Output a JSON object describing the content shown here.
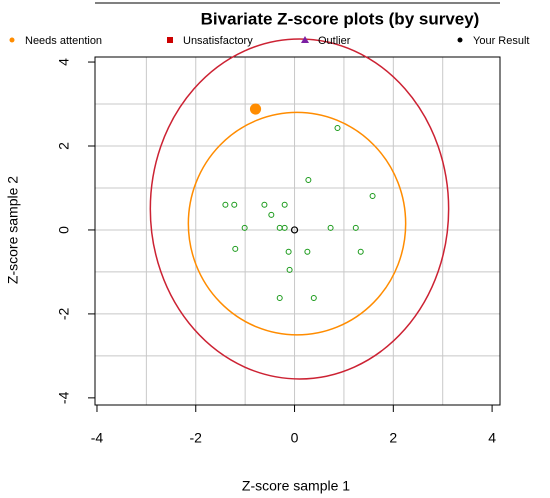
{
  "chart_data": {
    "type": "scatter",
    "title": "Bivariate Z-score plots (by survey)",
    "x_label": "Z-score sample 1",
    "y_label": "Z-score sample 2",
    "xlim": [
      -4.04,
      4.16
    ],
    "ylim": [
      -4.17,
      4.12
    ],
    "xticks": [
      -4,
      -2,
      0,
      2,
      4
    ],
    "yticks": [
      -4,
      -2,
      0,
      2,
      4
    ],
    "xgrid": [
      -3,
      -2,
      -1,
      0,
      1,
      2,
      3
    ],
    "ygrid": [
      -3,
      -2,
      -1,
      0,
      1,
      2,
      3
    ],
    "legend": [
      {
        "name": "Needs attention",
        "color": "#ff8c00",
        "marker": "circle"
      },
      {
        "name": "Unsatisfactory",
        "color": "#cc0000",
        "marker": "square"
      },
      {
        "name": "Outlier",
        "color": "#7b1fa2",
        "marker": "triangle"
      },
      {
        "name": "Your Result",
        "color": "#000000",
        "marker": "circle"
      }
    ],
    "ellipses": [
      {
        "color": "#ff8c00",
        "cx": 0.05,
        "cy": 0.15,
        "rx": 2.2,
        "ry": 2.65
      },
      {
        "color": "#cc2233",
        "cx": 0.1,
        "cy": 0.5,
        "rx": 3.02,
        "ry": 4.05
      }
    ],
    "points": {
      "color": "#1a9a1a",
      "x": [
        -1.4,
        -1.22,
        -0.61,
        -0.2,
        0.28,
        0.87,
        1.58,
        -1.01,
        -0.47,
        -0.3,
        -0.2,
        -0.12,
        -0.1,
        0.26,
        0.73,
        1.24,
        1.34,
        -1.2,
        -0.3,
        0.39
      ],
      "values": [
        0.6,
        0.6,
        0.6,
        0.6,
        1.19,
        2.43,
        0.81,
        0.05,
        0.36,
        0.05,
        0.05,
        -0.52,
        -0.95,
        -0.52,
        0.05,
        0.05,
        -0.52,
        -0.45,
        -1.62,
        -1.62
      ]
    },
    "series": [
      {
        "name": "Needs attention",
        "color": "#ff8c00",
        "x": [
          -0.79
        ],
        "values": [
          2.88
        ]
      },
      {
        "name": "Your Result",
        "color": "#000000",
        "x": [
          0
        ],
        "values": [
          0
        ]
      }
    ]
  }
}
